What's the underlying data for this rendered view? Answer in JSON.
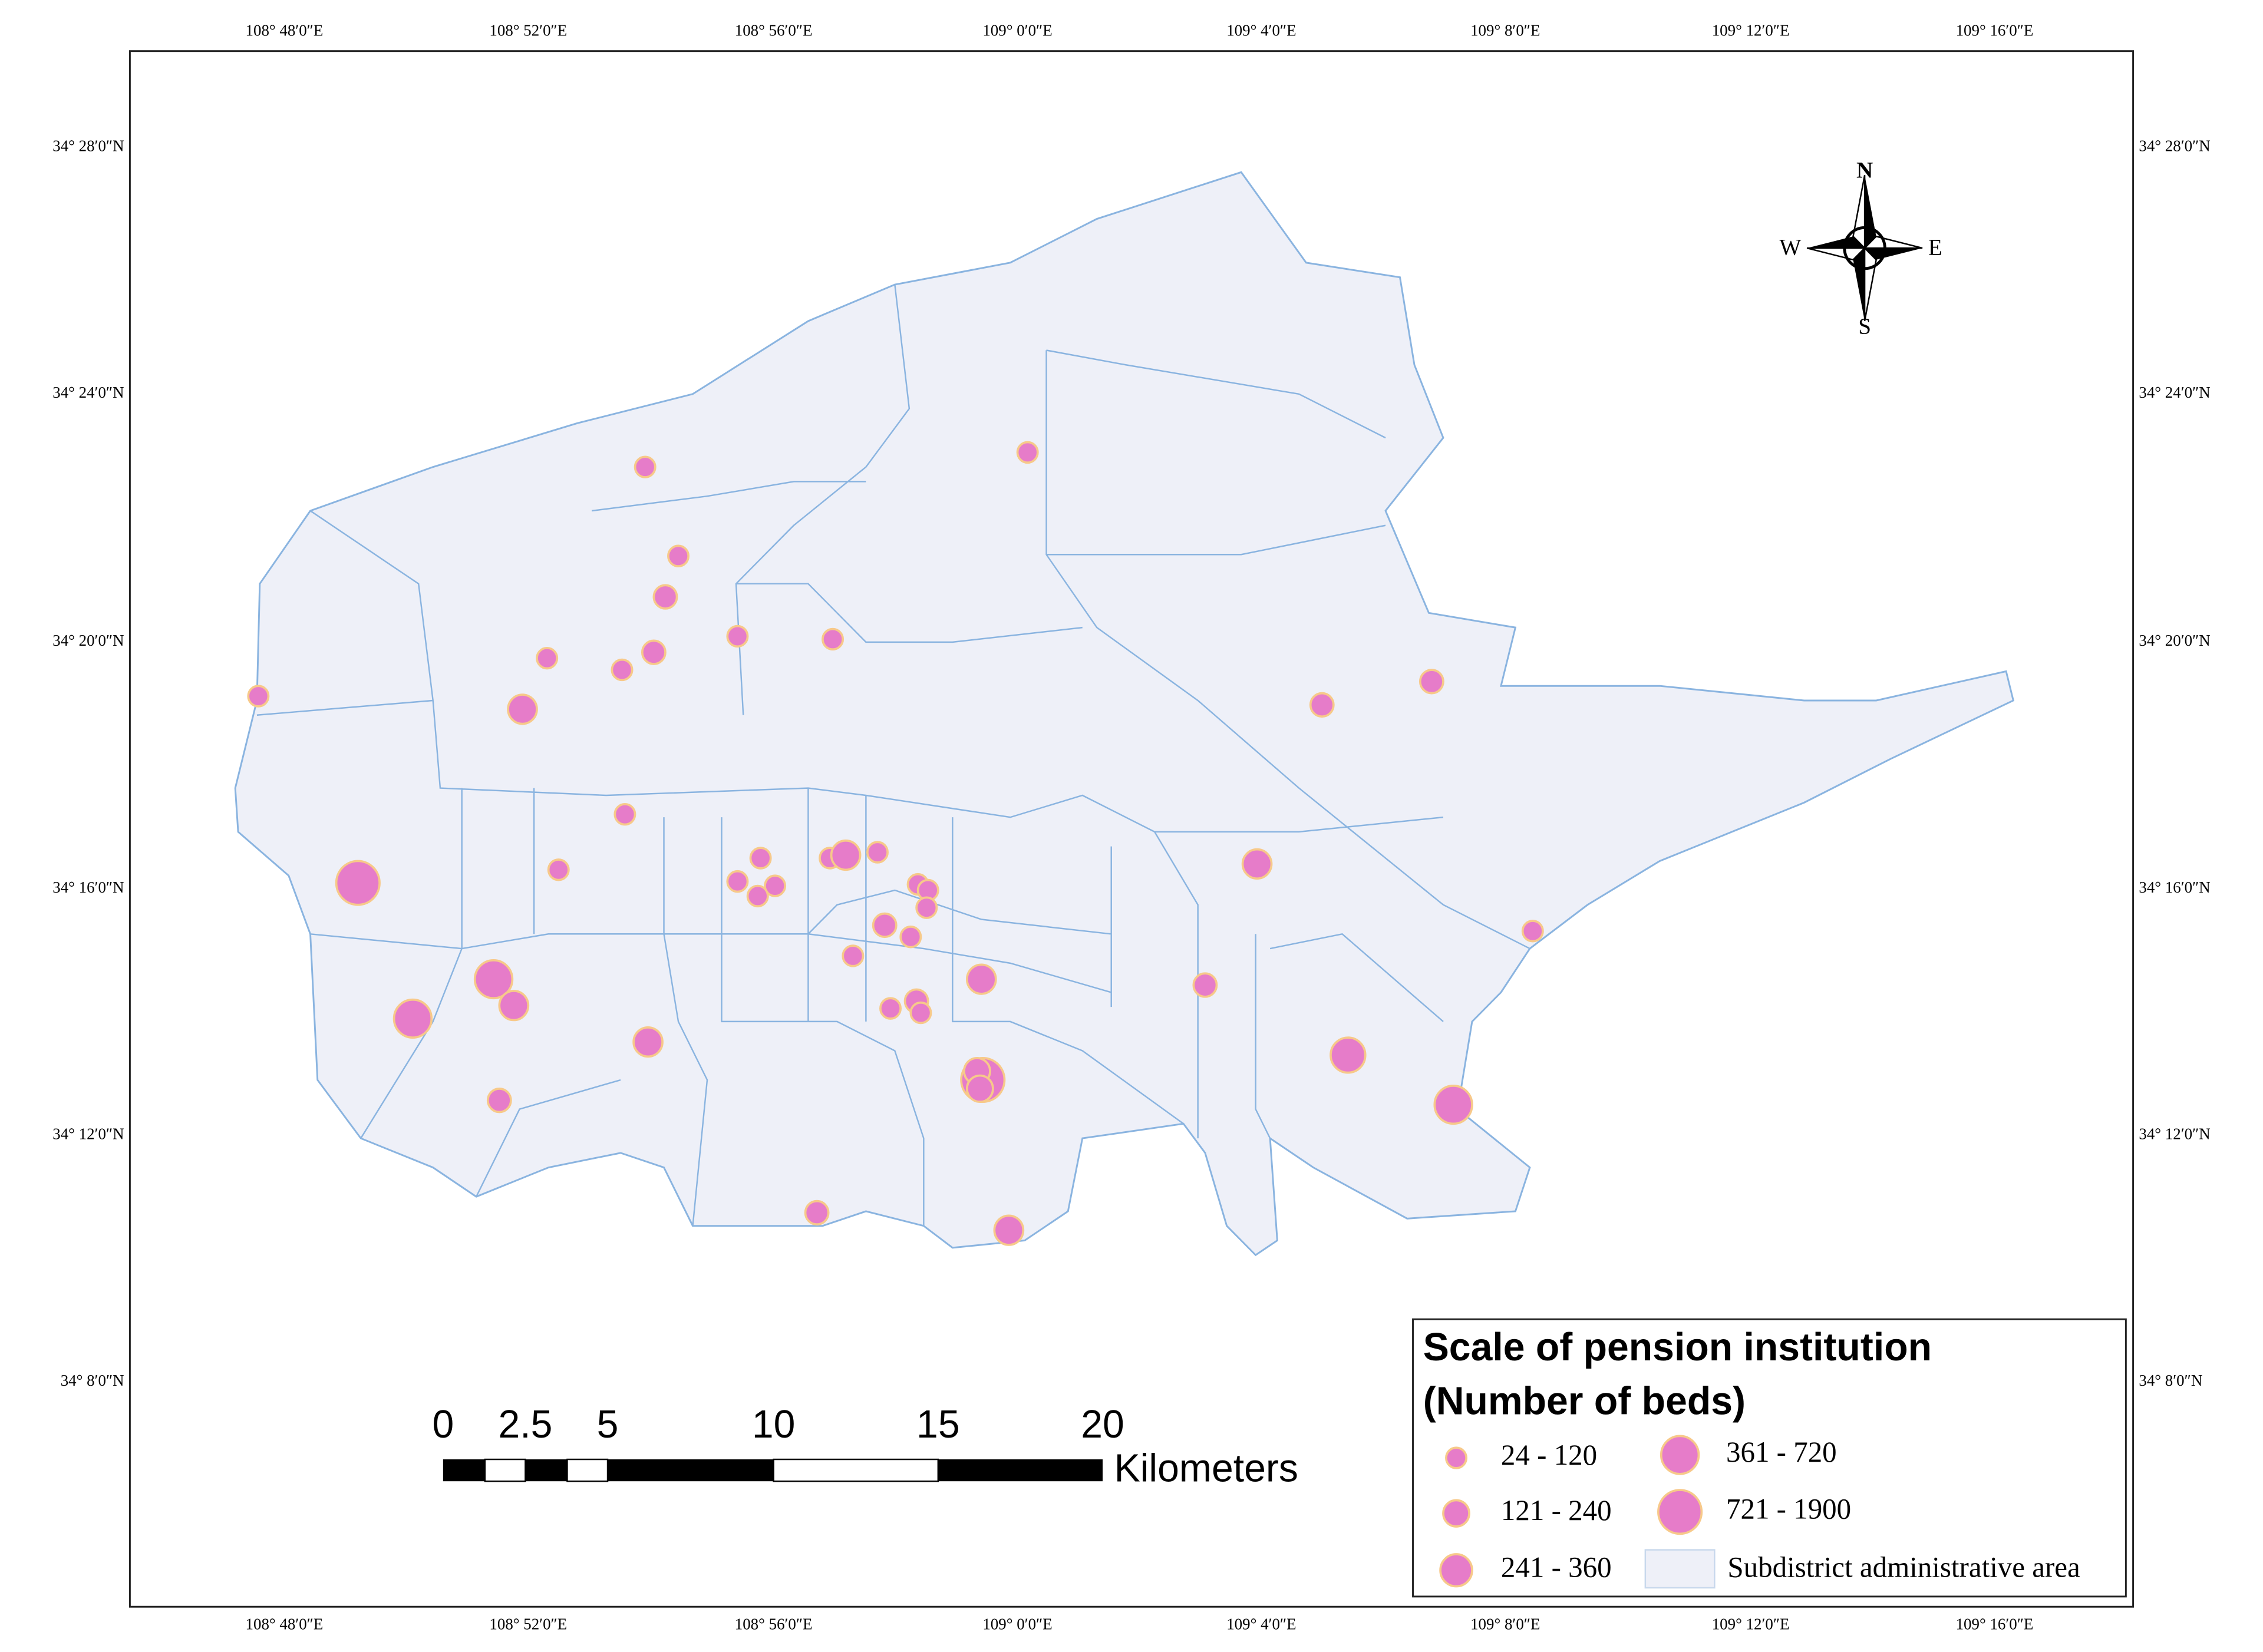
{
  "map": {
    "graticule": {
      "longitudes": [
        "108° 48′0″E",
        "108° 52′0″E",
        "108° 56′0″E",
        "109° 0′0″E",
        "109° 4′0″E",
        "109° 8′0″E",
        "109° 12′0″E",
        "109° 16′0″E"
      ],
      "latitudes": [
        "34° 28′0″N",
        "34° 24′0″N",
        "34° 20′0″N",
        "34° 16′0″N",
        "34° 12′0″N",
        "34° 8′0″N"
      ]
    },
    "compass": {
      "north": "N",
      "south": "S",
      "east": "E",
      "west": "W"
    },
    "scale_bar": {
      "ticks": [
        "0",
        "2.5",
        "5",
        "10",
        "15",
        "20"
      ],
      "unit": "Kilometers"
    },
    "legend": {
      "title_lines": [
        "Scale of pension institution",
        "(Number of beds)"
      ],
      "classes": [
        "24 - 120",
        "121 - 240",
        "241 - 360",
        "361 - 720",
        "721 - 1900"
      ],
      "area": "Subdistrict administrative area"
    }
  }
}
